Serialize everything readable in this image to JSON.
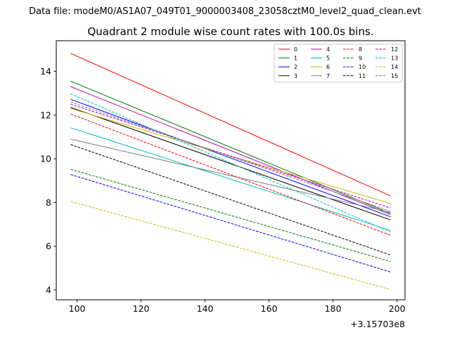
{
  "suptitle": "Data file: modeM0/AS1A07_049T01_9000003408_23058cztM0_level2_quad_clean.evt",
  "chart_data": {
    "type": "line",
    "title": "Quadrant 2 module wise count rates with 100.0s bins.",
    "xlabel": "",
    "ylabel": "",
    "x_offset_label": "+3.15703e8",
    "xlim": [
      93.5,
      202.5
    ],
    "ylim": [
      3.55,
      15.4
    ],
    "x_ticks": [
      100,
      120,
      140,
      160,
      180,
      200
    ],
    "y_ticks": [
      4,
      6,
      8,
      10,
      12,
      14
    ],
    "legend_position": "upper right",
    "series": [
      {
        "name": "0",
        "color": "#ff0000",
        "dash": "solid",
        "x": [
          98,
          198
        ],
        "values": [
          14.82,
          8.3
        ]
      },
      {
        "name": "1",
        "color": "#008000",
        "dash": "solid",
        "x": [
          98,
          198
        ],
        "values": [
          13.55,
          7.5
        ]
      },
      {
        "name": "2",
        "color": "#0000ff",
        "dash": "solid",
        "x": [
          98,
          198
        ],
        "values": [
          12.72,
          7.35
        ]
      },
      {
        "name": "3",
        "color": "#000000",
        "dash": "solid",
        "x": [
          98,
          198
        ],
        "values": [
          12.35,
          7.2
        ]
      },
      {
        "name": "4",
        "color": "#bf00bf",
        "dash": "solid",
        "x": [
          98,
          198
        ],
        "values": [
          13.3,
          7.45
        ]
      },
      {
        "name": "5",
        "color": "#00bfbf",
        "dash": "solid",
        "x": [
          98,
          198
        ],
        "values": [
          11.42,
          6.72
        ]
      },
      {
        "name": "6",
        "color": "#bfbf00",
        "dash": "solid",
        "x": [
          98,
          198
        ],
        "values": [
          12.3,
          7.95
        ]
      },
      {
        "name": "7",
        "color": "#808080",
        "dash": "solid",
        "x": [
          98,
          198
        ],
        "values": [
          10.9,
          7.55
        ]
      },
      {
        "name": "8",
        "color": "#ff0000",
        "dash": "dashed",
        "x": [
          98,
          198
        ],
        "values": [
          12.05,
          6.5
        ]
      },
      {
        "name": "9",
        "color": "#008000",
        "dash": "dashed",
        "x": [
          98,
          198
        ],
        "values": [
          9.52,
          5.3
        ]
      },
      {
        "name": "10",
        "color": "#0000ff",
        "dash": "dashed",
        "x": [
          98,
          198
        ],
        "values": [
          9.28,
          4.82
        ]
      },
      {
        "name": "11",
        "color": "#000000",
        "dash": "dashed",
        "x": [
          98,
          198
        ],
        "values": [
          10.65,
          5.6
        ]
      },
      {
        "name": "12",
        "color": "#bf00bf",
        "dash": "dashed",
        "x": [
          98,
          198
        ],
        "values": [
          12.5,
          7.75
        ]
      },
      {
        "name": "13",
        "color": "#00bfbf",
        "dash": "dashed",
        "x": [
          98,
          198
        ],
        "values": [
          12.97,
          6.65
        ]
      },
      {
        "name": "14",
        "color": "#bfbf00",
        "dash": "dashed",
        "x": [
          98,
          198
        ],
        "values": [
          8.05,
          4.02
        ]
      },
      {
        "name": "15",
        "color": "#808080",
        "dash": "dashed",
        "x": [
          98,
          198
        ],
        "values": [
          12.6,
          7.6
        ]
      }
    ]
  }
}
